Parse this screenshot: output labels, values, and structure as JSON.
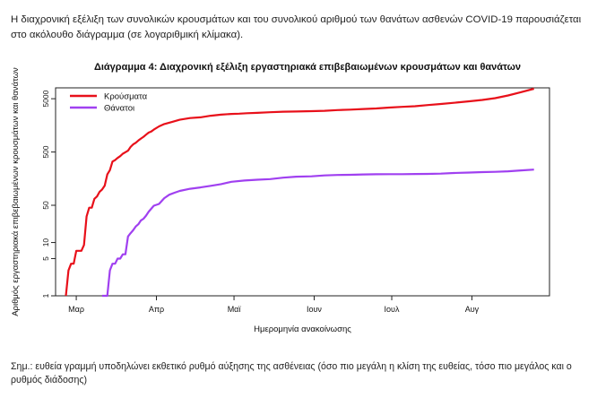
{
  "intro_text": "Η διαχρονική εξέλιξη των συνολικών κρουσμάτων και του συνολικού αριθμού των θανάτων ασθενών COVID-19 παρουσιάζεται στο ακόλουθο διάγραμμα (σε λογαριθμική κλίμακα).",
  "note_text": "Σημ.: ευθεία γραμμή υποδηλώνει εκθετικό ρυθμό αύξησης της ασθένειας (όσο πιο μεγάλη η κλίση της ευθείας, τόσο πιο μεγάλος και ο ρυθμός διάδοσης)",
  "chart_data": {
    "type": "line",
    "title": "Διάγραμμα 4: Διαχρονική εξέλιξη εργαστηριακά επιβεβαιωμένων κρουσμάτων και θανάτων",
    "xlabel": "Ημερομηνία ανακοίνωσης",
    "ylabel": "Αριθμός εργαστηριακά επιβεβαιωμένων κρουσμάτων και θανάτων",
    "y_scale": "log",
    "ylim": [
      1,
      8000
    ],
    "y_ticks": [
      1,
      5,
      10,
      50,
      500,
      5000
    ],
    "xlim": [
      "2020-02-22",
      "2020-08-31"
    ],
    "x_ticks": [
      {
        "date": "2020-03-01",
        "label": "Μαρ"
      },
      {
        "date": "2020-04-01",
        "label": "Απρ"
      },
      {
        "date": "2020-05-01",
        "label": "Μαϊ"
      },
      {
        "date": "2020-06-01",
        "label": "Ιουν"
      },
      {
        "date": "2020-07-01",
        "label": "Ιουλ"
      },
      {
        "date": "2020-08-01",
        "label": "Αυγ"
      }
    ],
    "grid": false,
    "legend_position": "top-left",
    "series": [
      {
        "name": "Κρούσματα",
        "color": "#e8101a",
        "points": [
          [
            "2020-02-26",
            1
          ],
          [
            "2020-02-27",
            3
          ],
          [
            "2020-02-28",
            4
          ],
          [
            "2020-02-29",
            4
          ],
          [
            "2020-03-01",
            7
          ],
          [
            "2020-03-03",
            7
          ],
          [
            "2020-03-04",
            9
          ],
          [
            "2020-03-05",
            31
          ],
          [
            "2020-03-06",
            45
          ],
          [
            "2020-03-07",
            45
          ],
          [
            "2020-03-08",
            66
          ],
          [
            "2020-03-09",
            73
          ],
          [
            "2020-03-10",
            89
          ],
          [
            "2020-03-11",
            99
          ],
          [
            "2020-03-12",
            117
          ],
          [
            "2020-03-13",
            190
          ],
          [
            "2020-03-14",
            228
          ],
          [
            "2020-03-15",
            331
          ],
          [
            "2020-03-16",
            352
          ],
          [
            "2020-03-17",
            387
          ],
          [
            "2020-03-18",
            418
          ],
          [
            "2020-03-19",
            464
          ],
          [
            "2020-03-20",
            495
          ],
          [
            "2020-03-21",
            530
          ],
          [
            "2020-03-22",
            624
          ],
          [
            "2020-03-23",
            695
          ],
          [
            "2020-03-24",
            743
          ],
          [
            "2020-03-25",
            821
          ],
          [
            "2020-03-26",
            892
          ],
          [
            "2020-03-27",
            966
          ],
          [
            "2020-03-28",
            1061
          ],
          [
            "2020-03-29",
            1156
          ],
          [
            "2020-03-30",
            1212
          ],
          [
            "2020-03-31",
            1314
          ],
          [
            "2020-04-02",
            1514
          ],
          [
            "2020-04-04",
            1673
          ],
          [
            "2020-04-07",
            1832
          ],
          [
            "2020-04-10",
            2011
          ],
          [
            "2020-04-14",
            2170
          ],
          [
            "2020-04-18",
            2235
          ],
          [
            "2020-04-22",
            2401
          ],
          [
            "2020-04-26",
            2517
          ],
          [
            "2020-04-30",
            2591
          ],
          [
            "2020-05-03",
            2620
          ],
          [
            "2020-05-06",
            2678
          ],
          [
            "2020-05-10",
            2710
          ],
          [
            "2020-05-15",
            2788
          ],
          [
            "2020-05-20",
            2850
          ],
          [
            "2020-05-25",
            2882
          ],
          [
            "2020-05-31",
            2918
          ],
          [
            "2020-06-05",
            2967
          ],
          [
            "2020-06-10",
            3058
          ],
          [
            "2020-06-15",
            3121
          ],
          [
            "2020-06-20",
            3203
          ],
          [
            "2020-06-25",
            3287
          ],
          [
            "2020-06-30",
            3409
          ],
          [
            "2020-07-05",
            3519
          ],
          [
            "2020-07-10",
            3622
          ],
          [
            "2020-07-15",
            3803
          ],
          [
            "2020-07-20",
            3983
          ],
          [
            "2020-07-25",
            4193
          ],
          [
            "2020-07-31",
            4477
          ],
          [
            "2020-08-05",
            4737
          ],
          [
            "2020-08-10",
            5123
          ],
          [
            "2020-08-15",
            5749
          ],
          [
            "2020-08-20",
            6632
          ],
          [
            "2020-08-25",
            7684
          ]
        ]
      },
      {
        "name": "Θάνατοι",
        "color": "#a040f0",
        "points": [
          [
            "2020-03-11",
            1
          ],
          [
            "2020-03-13",
            1
          ],
          [
            "2020-03-14",
            3
          ],
          [
            "2020-03-15",
            4
          ],
          [
            "2020-03-16",
            4
          ],
          [
            "2020-03-17",
            5
          ],
          [
            "2020-03-18",
            5
          ],
          [
            "2020-03-19",
            6
          ],
          [
            "2020-03-20",
            6
          ],
          [
            "2020-03-21",
            13
          ],
          [
            "2020-03-22",
            15
          ],
          [
            "2020-03-23",
            17
          ],
          [
            "2020-03-24",
            20
          ],
          [
            "2020-03-25",
            22
          ],
          [
            "2020-03-26",
            26
          ],
          [
            "2020-03-27",
            28
          ],
          [
            "2020-03-28",
            32
          ],
          [
            "2020-03-29",
            38
          ],
          [
            "2020-03-30",
            43
          ],
          [
            "2020-03-31",
            49
          ],
          [
            "2020-04-02",
            53
          ],
          [
            "2020-04-04",
            68
          ],
          [
            "2020-04-06",
            79
          ],
          [
            "2020-04-08",
            86
          ],
          [
            "2020-04-10",
            93
          ],
          [
            "2020-04-14",
            102
          ],
          [
            "2020-04-18",
            108
          ],
          [
            "2020-04-22",
            116
          ],
          [
            "2020-04-26",
            125
          ],
          [
            "2020-04-30",
            138
          ],
          [
            "2020-05-05",
            146
          ],
          [
            "2020-05-10",
            151
          ],
          [
            "2020-05-15",
            155
          ],
          [
            "2020-05-20",
            165
          ],
          [
            "2020-05-25",
            172
          ],
          [
            "2020-05-31",
            175
          ],
          [
            "2020-06-05",
            182
          ],
          [
            "2020-06-10",
            185
          ],
          [
            "2020-06-15",
            187
          ],
          [
            "2020-06-20",
            190
          ],
          [
            "2020-06-25",
            191
          ],
          [
            "2020-06-30",
            192
          ],
          [
            "2020-07-05",
            192
          ],
          [
            "2020-07-10",
            193
          ],
          [
            "2020-07-15",
            194
          ],
          [
            "2020-07-20",
            196
          ],
          [
            "2020-07-25",
            202
          ],
          [
            "2020-07-31",
            206
          ],
          [
            "2020-08-05",
            210
          ],
          [
            "2020-08-10",
            212
          ],
          [
            "2020-08-15",
            217
          ],
          [
            "2020-08-20",
            226
          ],
          [
            "2020-08-25",
            234
          ]
        ]
      }
    ]
  }
}
